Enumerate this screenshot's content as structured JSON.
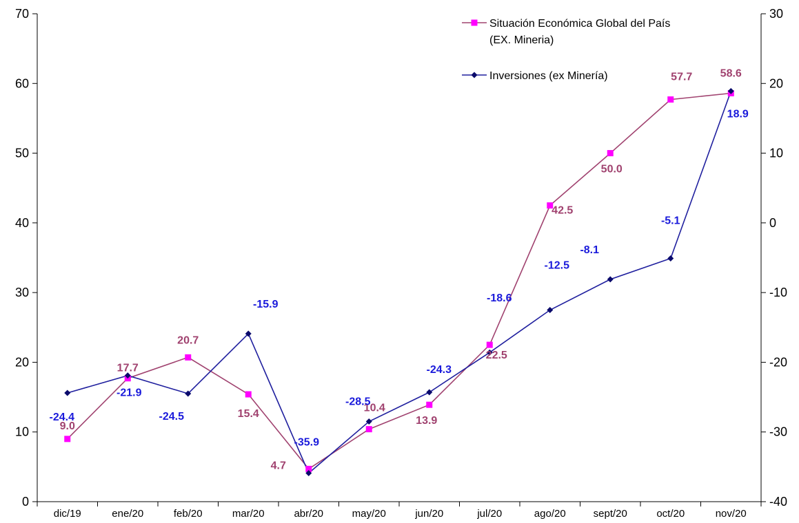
{
  "chart_data": {
    "type": "line",
    "title": "",
    "categories": [
      "dic/19",
      "ene/20",
      "feb/20",
      "mar/20",
      "abr/20",
      "may/20",
      "jun/20",
      "jul/20",
      "ago/20",
      "sept/20",
      "oct/20",
      "nov/20"
    ],
    "y_left": {
      "range": [
        0,
        70
      ],
      "ticks": [
        "0",
        "10",
        "20",
        "30",
        "40",
        "50",
        "60",
        "70"
      ]
    },
    "y_right": {
      "range": [
        -40,
        30
      ],
      "ticks": [
        "-40",
        "-30",
        "-20",
        "-10",
        "0",
        "10",
        "20",
        "30"
      ]
    },
    "grid": false,
    "legend_position": "top-right",
    "series": [
      {
        "name": "Situación Económica Global del País (EX. Mineria)",
        "name_lines": [
          "Situación Económica Global del País",
          "(EX. Mineria)"
        ],
        "axis": "left",
        "marker": "square",
        "line_color": "#A0426F",
        "marker_color": "#FF00FF",
        "label_color": "#A0426F",
        "values": [
          9.0,
          17.7,
          20.7,
          15.4,
          4.7,
          10.4,
          13.9,
          22.5,
          42.5,
          50.0,
          57.7,
          58.6
        ],
        "labels": [
          "9.0",
          "17.7",
          "20.7",
          "15.4",
          "4.7",
          "10.4",
          "13.9",
          "22.5",
          "42.5",
          "50.0",
          "57.7",
          "58.6"
        ]
      },
      {
        "name": "Inversiones (ex Minería)",
        "name_lines": [
          "Inversiones (ex Minería)"
        ],
        "axis": "right",
        "marker": "diamond",
        "line_color": "#1F1F9E",
        "marker_color": "#0A0A6B",
        "label_color": "#1A1ADB",
        "values": [
          -24.4,
          -21.9,
          -24.5,
          -15.9,
          -35.9,
          -28.5,
          -24.3,
          -18.6,
          -12.5,
          -8.1,
          -5.1,
          18.9
        ],
        "labels": [
          "-24.4",
          "-21.9",
          "-24.5",
          "-15.9",
          "-35.9",
          "-28.5",
          "-24.3",
          "-18.6",
          "-12.5",
          "-8.1",
          "-5.1",
          "18.9"
        ]
      }
    ]
  }
}
